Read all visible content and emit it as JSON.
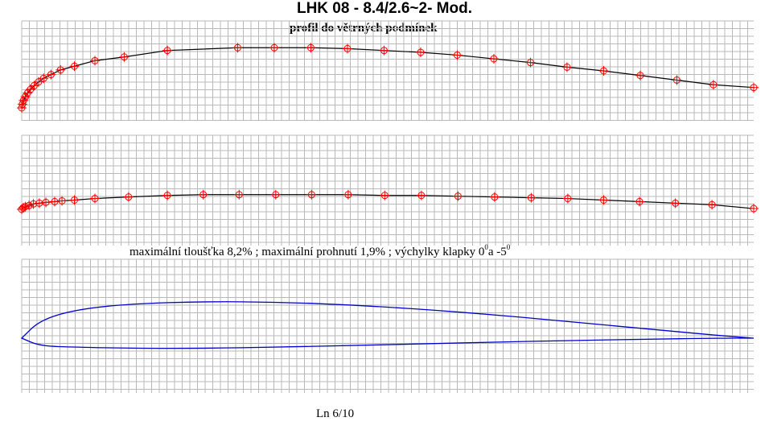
{
  "title": "LHK 08 - 8.4/2.6~2- Mod.",
  "subtitle": "profil do větrných podmínek",
  "caption": {
    "prefix": "maximální tloušťka  8,2% ; maximální prohnutí  1,9% ; výchylky klapky 0",
    "deg1": "0",
    "mid": "a -5",
    "deg2": "0"
  },
  "footer": "Ln 6/10",
  "colors": {
    "grid": "#b8b8b8",
    "curve": "#000000",
    "marker": "#ff0000",
    "profile": "#0000cc"
  },
  "chart_data": [
    {
      "type": "line",
      "name": "upper-surface",
      "x": [
        0,
        0.1,
        0.25,
        0.5,
        0.8,
        1.2,
        1.7,
        2.3,
        3.0,
        4.0,
        5.3,
        7.2,
        10,
        14,
        19.9,
        29.5,
        34.5,
        39.5,
        44.5,
        49.5,
        54.5,
        59.5,
        64.5,
        69.5,
        74.5,
        79.5,
        84.5,
        89.5,
        94.5,
        100
      ],
      "y": [
        0,
        0.4,
        0.8,
        1.2,
        1.6,
        2.0,
        2.4,
        2.8,
        3.2,
        3.6,
        4.1,
        4.5,
        5.1,
        5.5,
        6.2,
        6.5,
        6.5,
        6.5,
        6.4,
        6.2,
        6.0,
        5.7,
        5.3,
        4.9,
        4.4,
        4.0,
        3.5,
        3.0,
        2.5,
        2.2
      ]
    },
    {
      "type": "line",
      "name": "camber-line",
      "x": [
        0,
        0.2,
        0.5,
        1.0,
        1.6,
        2.4,
        3.3,
        4.5,
        5.5,
        7.2,
        10,
        14.6,
        19.9,
        24.8,
        29.7,
        34.7,
        39.6,
        44.6,
        49.6,
        54.6,
        59.6,
        64.6,
        69.6,
        74.6,
        79.5,
        84.4,
        89.3,
        94.3,
        100
      ],
      "y": [
        0,
        0.2,
        0.35,
        0.5,
        0.7,
        0.8,
        0.9,
        1.0,
        1.1,
        1.2,
        1.4,
        1.6,
        1.8,
        1.9,
        1.9,
        1.9,
        1.9,
        1.9,
        1.8,
        1.8,
        1.7,
        1.6,
        1.5,
        1.4,
        1.2,
        1.0,
        0.8,
        0.6,
        0.1
      ]
    },
    {
      "type": "line",
      "name": "profile-outline",
      "x_upper": [
        0,
        2.5,
        7.5,
        15,
        25,
        35,
        45,
        55,
        65,
        75,
        85,
        95,
        100
      ],
      "y_upper": [
        0,
        3.2,
        5.1,
        6.1,
        6.5,
        6.4,
        5.9,
        5.1,
        4.1,
        2.9,
        1.7,
        0.5,
        0
      ],
      "x_lower": [
        0,
        2.5,
        7.5,
        15,
        25,
        35,
        45,
        55,
        65,
        75,
        85,
        95,
        100
      ],
      "y_lower": [
        0,
        -1.4,
        -1.6,
        -1.8,
        -1.8,
        -1.6,
        -1.3,
        -1.0,
        -0.7,
        -0.4,
        -0.2,
        0,
        0
      ]
    }
  ]
}
